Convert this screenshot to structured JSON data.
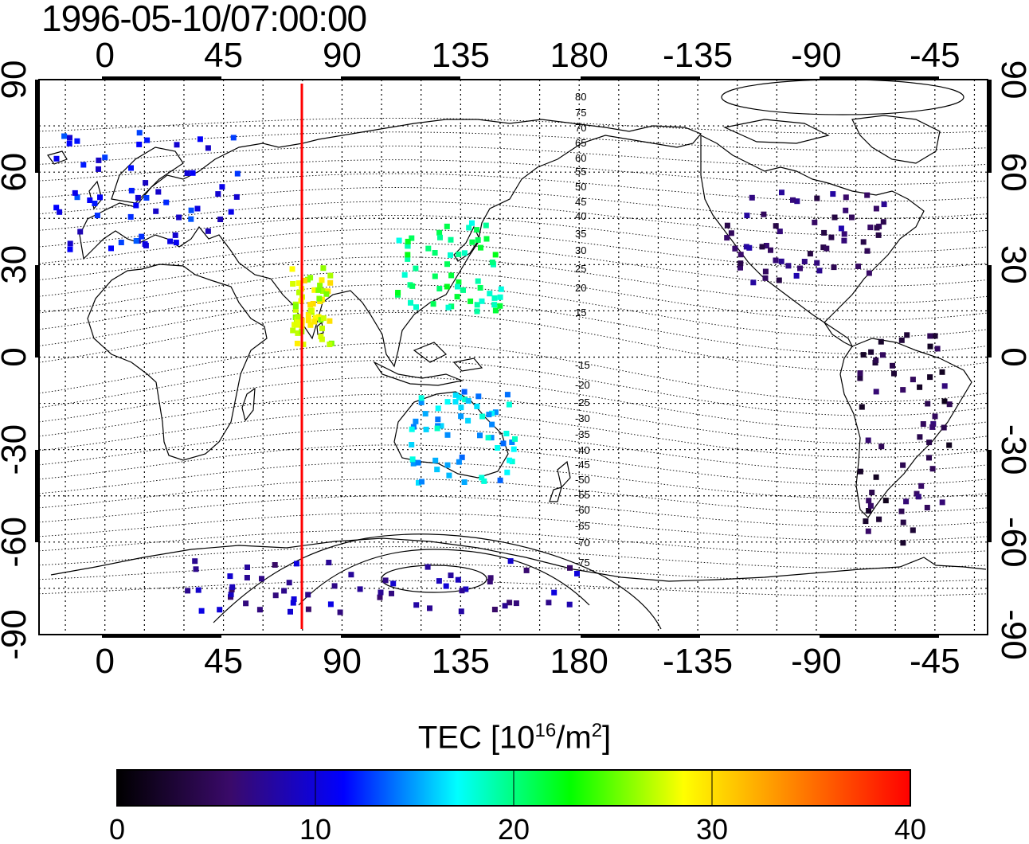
{
  "title": "1996-05-10/07:00:00",
  "map": {
    "top_axis_labels": [
      "0",
      "45",
      "90",
      "135",
      "180",
      "-135",
      "-90",
      "-45"
    ],
    "bottom_axis_labels": [
      "0",
      "45",
      "90",
      "135",
      "180",
      "-135",
      "-90",
      "-45"
    ],
    "left_axis_labels": [
      "90",
      "60",
      "30",
      "0",
      "-30",
      "-60",
      "-90"
    ],
    "right_axis_labels": [
      "90",
      "60",
      "30",
      "0",
      "-30",
      "-60",
      "-90"
    ],
    "lon_ticks_deg": [
      0,
      45,
      90,
      135,
      180,
      225,
      270,
      315
    ],
    "lat_ticks_deg": [
      90,
      60,
      30,
      0,
      -30,
      -60,
      -90
    ],
    "lon_range_deg": [
      -25,
      335
    ],
    "lat_range_deg": [
      -90,
      90
    ],
    "grid": "dotted 15 degree",
    "meridian_marker_lon": 75,
    "meridian_marker_color": "#ff0000",
    "magnetic_latitude_labels": [
      "80",
      "75",
      "70",
      "65",
      "60",
      "55",
      "50",
      "45",
      "40",
      "35",
      "30",
      "25",
      "20",
      "15",
      "-15",
      "-20",
      "-25",
      "-30",
      "-35",
      "-40",
      "-45",
      "-50",
      "-55",
      "-60",
      "-65",
      "-70",
      "-75"
    ]
  },
  "colorbar": {
    "label_text": "TEC  [10",
    "label_sup1": "16",
    "label_mid": "/m",
    "label_sup2": "2",
    "label_end": "]",
    "ticks": [
      "0",
      "10",
      "20",
      "30",
      "40"
    ],
    "range": [
      0,
      40
    ],
    "colors": [
      "#000000",
      "#3a0a6a",
      "#0000ff",
      "#00ffff",
      "#00ff00",
      "#ffff00",
      "#ff8000",
      "#ff0000"
    ]
  },
  "tec_regions": [
    {
      "region": "europe",
      "lon": [
        -20,
        50
      ],
      "lat": [
        35,
        75
      ],
      "tec": 11
    },
    {
      "region": "north-america",
      "lon": [
        -125,
        -65
      ],
      "lat": [
        25,
        55
      ],
      "tec": 6
    },
    {
      "region": "india",
      "lon": [
        70,
        85
      ],
      "lat": [
        5,
        30
      ],
      "tec": 28
    },
    {
      "region": "east-asia",
      "lon": [
        110,
        150
      ],
      "lat": [
        15,
        45
      ],
      "tec": 20
    },
    {
      "region": "australia",
      "lon": [
        115,
        155
      ],
      "lat": [
        -40,
        -10
      ],
      "tec": 16
    },
    {
      "region": "south-america",
      "lon": [
        -75,
        -40
      ],
      "lat": [
        -60,
        10
      ],
      "tec": 4
    },
    {
      "region": "antarctica",
      "lon": [
        30,
        180
      ],
      "lat": [
        -82,
        -65
      ],
      "tec": 8
    }
  ]
}
